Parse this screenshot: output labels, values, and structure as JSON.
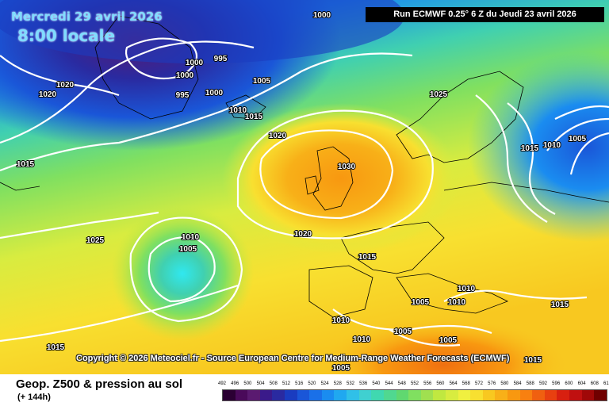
{
  "header": {
    "date": "Mercredi 29 avril 2026",
    "time": "8:00 locale",
    "run_info": "Run ECMWF 0.25° 6 Z du Jeudi 23 avril 2026"
  },
  "copyright": "Copyright © 2026 Meteociel.fr - Source European Centre for Medium-Range Weather Forecasts (ECMWF)",
  "footer": {
    "title": "Geop. Z500 & pression au sol",
    "subtitle": "(+ 144h)"
  },
  "legend": {
    "values": [
      "492",
      "496",
      "500",
      "504",
      "508",
      "512",
      "516",
      "520",
      "524",
      "528",
      "532",
      "536",
      "540",
      "544",
      "548",
      "552",
      "556",
      "560",
      "564",
      "568",
      "572",
      "576",
      "580",
      "584",
      "588",
      "592",
      "596",
      "600",
      "604",
      "608",
      "612"
    ],
    "colors": [
      "#2b0033",
      "#4a0a5a",
      "#5a1a70",
      "#3a1a8a",
      "#2a2aa0",
      "#1a3cc0",
      "#1a56d8",
      "#1a70e8",
      "#1a8cf0",
      "#20a8f0",
      "#30c0e8",
      "#40d0d0",
      "#40d8b0",
      "#50d890",
      "#60d870",
      "#80e060",
      "#a0e050",
      "#c0e840",
      "#d8ec40",
      "#f0f040",
      "#f8e030",
      "#f8c820",
      "#f8b018",
      "#f89810",
      "#f88010",
      "#f06010",
      "#e84010",
      "#d82010",
      "#c01010",
      "#a00808",
      "#700000"
    ]
  },
  "isobars": [
    {
      "label": "1000",
      "color": "#ffffff"
    },
    {
      "label": "995",
      "color": "#ffffff"
    },
    {
      "label": "1000",
      "color": "#ffffff"
    },
    {
      "label": "1000",
      "color": "#ffffff"
    },
    {
      "label": "995",
      "color": "#ffffff"
    },
    {
      "label": "1000",
      "color": "#ffffff"
    },
    {
      "label": "1005",
      "color": "#ffffff"
    },
    {
      "label": "1020",
      "color": "#ffffff"
    },
    {
      "label": "1020",
      "color": "#ffffff"
    },
    {
      "label": "1010",
      "color": "#ffffff"
    },
    {
      "label": "1015",
      "color": "#ffffff"
    },
    {
      "label": "1020",
      "color": "#ffffff"
    },
    {
      "label": "1030",
      "color": "#ffffff"
    },
    {
      "label": "1025",
      "color": "#ffffff"
    },
    {
      "label": "1015",
      "color": "#ffffff"
    },
    {
      "label": "1010",
      "color": "#ffffff"
    },
    {
      "label": "1005",
      "color": "#ffffff"
    },
    {
      "label": "1015",
      "color": "#ffffff"
    },
    {
      "label": "1025",
      "color": "#ffffff"
    },
    {
      "label": "1010",
      "color": "#ffffff"
    },
    {
      "label": "1005",
      "color": "#ffffff"
    },
    {
      "label": "1020",
      "color": "#ffffff"
    },
    {
      "label": "1015",
      "color": "#ffffff"
    },
    {
      "label": "1010",
      "color": "#ffffff"
    },
    {
      "label": "1005",
      "color": "#ffffff"
    },
    {
      "label": "1010",
      "color": "#ffffff"
    },
    {
      "label": "1015",
      "color": "#ffffff"
    },
    {
      "label": "1010",
      "color": "#ffffff"
    },
    {
      "label": "1010",
      "color": "#ffffff"
    },
    {
      "label": "1005",
      "color": "#ffffff"
    },
    {
      "label": "1005",
      "color": "#ffffff"
    },
    {
      "label": "1015",
      "color": "#ffffff"
    },
    {
      "label": "1005",
      "color": "#ffffff"
    },
    {
      "label": "1015",
      "color": "#ffffff"
    }
  ]
}
